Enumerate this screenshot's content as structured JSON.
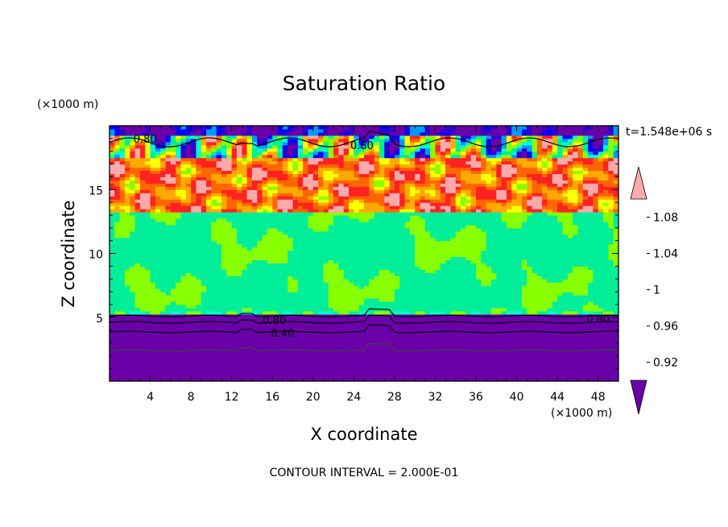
{
  "chart_data": {
    "type": "heatmap",
    "title": "Saturation Ratio",
    "xlabel": "X coordinate",
    "ylabel": "Z coordinate",
    "x_unit": "(×1000 m)",
    "y_unit": "(×1000 m)",
    "time_label": "t=1.548e+06 s",
    "footer": "CONTOUR INTERVAL = 2.000E-01",
    "xlim": [
      0,
      50
    ],
    "ylim": [
      0,
      20
    ],
    "x_ticks": [
      4,
      8,
      12,
      16,
      20,
      24,
      28,
      32,
      36,
      40,
      44,
      48
    ],
    "x_tick_labels": [
      "4",
      "8",
      "12",
      "16",
      "20",
      "24",
      "28",
      "32",
      "36",
      "40",
      "44",
      "48"
    ],
    "y_ticks": [
      5,
      10,
      15
    ],
    "y_tick_labels": [
      "5",
      "10",
      "15"
    ],
    "colorbar": {
      "levels": [
        0.9,
        0.92,
        0.94,
        0.96,
        0.98,
        1.0,
        1.02,
        1.04,
        1.06,
        1.08,
        1.1
      ],
      "colors": [
        "#6a00a8",
        "#3300cc",
        "#0000ff",
        "#0099ff",
        "#00ffcc",
        "#00ee99",
        "#88ff00",
        "#ffff00",
        "#ffaa00",
        "#ff6600",
        "#ff2222",
        "#ffaaaa"
      ],
      "tick_labels": [
        "0.92",
        "0.96",
        "1",
        "1.04",
        "1.08"
      ],
      "tick_values": [
        0.92,
        0.96,
        1.0,
        1.04,
        1.08
      ],
      "extend": "both"
    },
    "contour_labels": [
      {
        "text": "0.80",
        "x": 3.5,
        "z": 19.0
      },
      {
        "text": "0.80",
        "x": 24.8,
        "z": 18.5
      },
      {
        "text": "0.80",
        "x": 16.2,
        "z": 4.8
      },
      {
        "text": "0.40",
        "x": 17.0,
        "z": 3.8
      },
      {
        "text": "0.80",
        "x": 48.0,
        "z": 4.9
      }
    ]
  }
}
